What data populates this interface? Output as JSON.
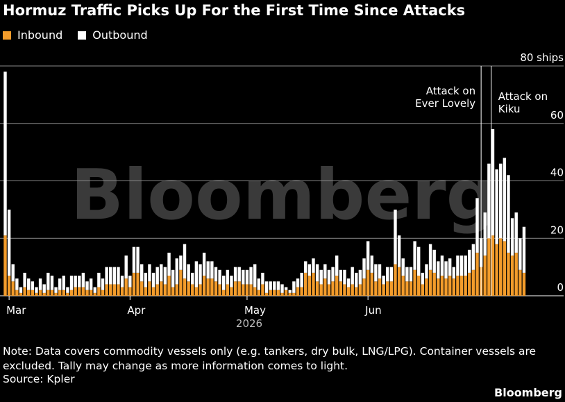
{
  "colors": {
    "inbound": "#f39c2b",
    "outbound": "#ffffff",
    "grid": "#8a8a8a",
    "watermark": "#3a3a3a",
    "annotation_line": "#ffffff"
  },
  "chart_data": {
    "type": "bar",
    "stacked": true,
    "title": "Hormuz Traffic Picks Up For the First Time Since Attacks",
    "xlabel": "2026",
    "ylabel": "",
    "ylim": [
      0,
      80
    ],
    "y_ticks": [
      "80 ships",
      "60",
      "40",
      "20",
      "0"
    ],
    "y_tick_values": [
      80,
      60,
      40,
      20,
      0
    ],
    "grid": true,
    "legend": "top-left",
    "watermark": "Bloomberg",
    "x_ticks": [
      {
        "label": "Mar",
        "date": "2026-03-01"
      },
      {
        "label": "Apr",
        "date": "2026-04-01"
      },
      {
        "label": "May",
        "date": "2026-05-01"
      },
      {
        "label": "Jun",
        "date": "2026-06-01"
      }
    ],
    "start_date": "2026-02-28",
    "series": [
      {
        "name": "Inbound",
        "values": [
          21,
          7,
          5,
          2,
          1,
          3,
          2,
          2,
          1,
          2,
          1,
          2,
          2,
          1,
          2,
          2,
          1,
          2,
          3,
          3,
          3,
          2,
          2,
          1,
          3,
          2,
          4,
          4,
          4,
          4,
          3,
          6,
          3,
          8,
          8,
          5,
          3,
          5,
          3,
          4,
          5,
          4,
          7,
          3,
          4,
          9,
          6,
          5,
          4,
          3,
          4,
          7,
          6,
          6,
          5,
          4,
          2,
          4,
          3,
          5,
          5,
          4,
          4,
          4,
          3,
          2,
          4,
          1,
          2,
          2,
          2,
          1,
          2,
          1,
          1,
          3,
          3,
          8,
          7,
          8,
          5,
          4,
          6,
          4,
          5,
          7,
          5,
          4,
          3,
          4,
          3,
          4,
          6,
          9,
          8,
          5,
          6,
          4,
          5,
          5,
          11,
          10,
          7,
          5,
          5,
          9,
          7,
          4,
          6,
          9,
          8,
          6,
          7,
          6,
          7,
          6,
          7,
          7,
          7,
          8,
          9,
          15,
          10,
          14,
          20,
          21,
          18,
          20,
          19,
          15,
          14,
          15,
          9,
          8
        ]
      },
      {
        "name": "Outbound",
        "values": [
          57,
          23,
          6,
          4,
          2,
          5,
          4,
          3,
          2,
          4,
          3,
          6,
          5,
          2,
          4,
          5,
          2,
          5,
          4,
          4,
          5,
          3,
          4,
          2,
          5,
          4,
          6,
          6,
          6,
          6,
          4,
          8,
          4,
          9,
          9,
          6,
          5,
          6,
          5,
          6,
          6,
          6,
          8,
          6,
          9,
          5,
          12,
          6,
          4,
          9,
          7,
          8,
          6,
          6,
          5,
          5,
          5,
          5,
          4,
          5,
          5,
          5,
          5,
          6,
          8,
          4,
          4,
          4,
          3,
          3,
          3,
          3,
          1,
          1,
          4,
          3,
          5,
          4,
          4,
          5,
          6,
          5,
          5,
          5,
          5,
          7,
          4,
          5,
          3,
          6,
          5,
          5,
          7,
          10,
          6,
          6,
          5,
          3,
          5,
          5,
          19,
          11,
          6,
          5,
          5,
          10,
          10,
          4,
          5,
          9,
          8,
          6,
          7,
          6,
          6,
          4,
          7,
          7,
          7,
          8,
          9,
          19,
          10,
          15,
          26,
          37,
          26,
          26,
          29,
          27,
          13,
          14,
          11,
          16
        ]
      }
    ],
    "annotations": [
      {
        "text_lines": [
          "Attack on",
          "Ever Lovely"
        ],
        "bar_index": 122,
        "align": "right"
      },
      {
        "text_lines": [
          "Attack on",
          "Kiku"
        ],
        "bar_index": 124.6,
        "align": "left"
      }
    ]
  },
  "note": "Note: Data covers commodity vessels only (e.g. tankers, dry bulk, LNG/LPG). Container vessels are excluded. Tally may change as more information comes to light.",
  "source": "Source: Kpler",
  "brand": "Bloomberg"
}
